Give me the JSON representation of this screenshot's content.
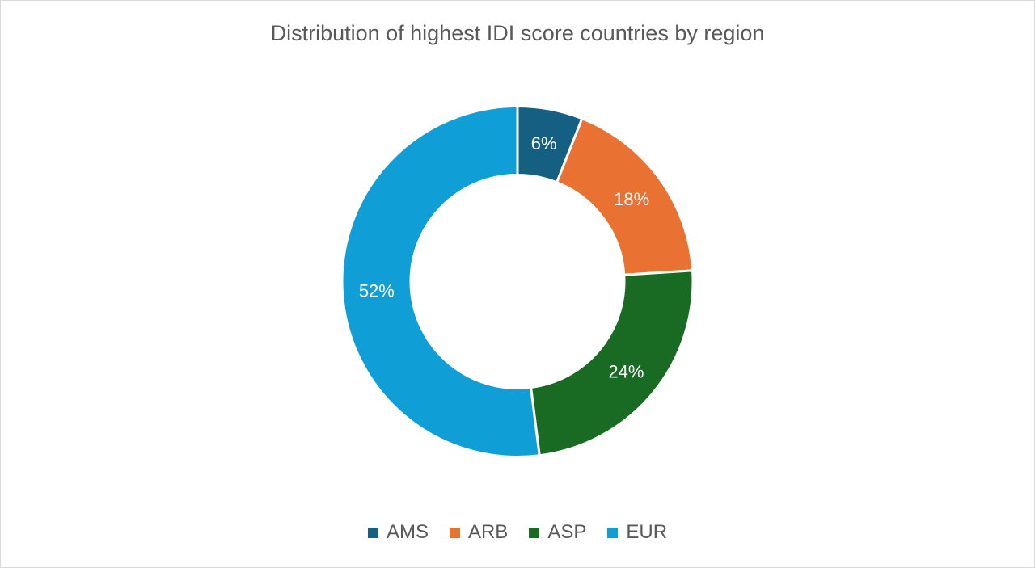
{
  "chart_data": {
    "type": "pie",
    "variant": "donut",
    "title": "Distribution of highest IDI score countries by region",
    "categories": [
      "AMS",
      "ARB",
      "ASP",
      "EUR"
    ],
    "values": [
      6,
      18,
      24,
      52
    ],
    "data_labels": [
      "6%",
      "18%",
      "24%",
      "52%"
    ],
    "colors": [
      "#156082",
      "#E97132",
      "#196B24",
      "#0F9ED5"
    ],
    "legend_position": "bottom"
  }
}
